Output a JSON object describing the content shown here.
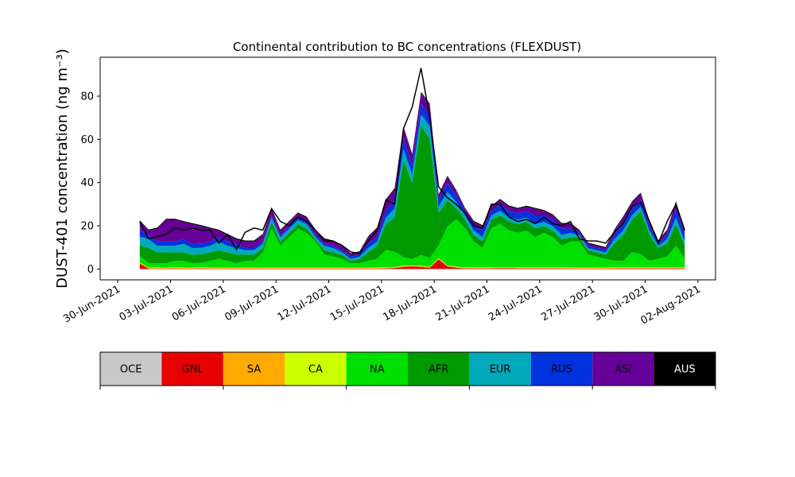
{
  "chart_data": {
    "type": "area",
    "title": "Continental contribution to BC concentrations (FLEXDUST)",
    "xlabel": "",
    "ylabel": "DUST-401 concentration (ng m⁻³)",
    "x_range": [
      "2021-06-29",
      "2021-08-03"
    ],
    "ylim": [
      -5,
      98
    ],
    "x_tick_labels": [
      "30-Jun-2021",
      "03-Jul-2021",
      "06-Jul-2021",
      "09-Jul-2021",
      "12-Jul-2021",
      "15-Jul-2021",
      "18-Jul-2021",
      "21-Jul-2021",
      "24-Jul-2021",
      "27-Jul-2021",
      "30-Jul-2021",
      "02-Aug-2021"
    ],
    "y_ticks": [
      0,
      20,
      40,
      60,
      80
    ],
    "x": [
      "2021-07-01",
      "2021-07-01",
      "2021-07-02",
      "2021-07-02",
      "2021-07-03",
      "2021-07-03",
      "2021-07-04",
      "2021-07-04",
      "2021-07-05",
      "2021-07-05",
      "2021-07-06",
      "2021-07-06",
      "2021-07-07",
      "2021-07-07",
      "2021-07-08",
      "2021-07-08",
      "2021-07-09",
      "2021-07-09",
      "2021-07-10",
      "2021-07-10",
      "2021-07-11",
      "2021-07-11",
      "2021-07-12",
      "2021-07-12",
      "2021-07-13",
      "2021-07-13",
      "2021-07-14",
      "2021-07-14",
      "2021-07-15",
      "2021-07-15",
      "2021-07-16",
      "2021-07-16",
      "2021-07-17",
      "2021-07-17",
      "2021-07-18",
      "2021-07-18",
      "2021-07-19",
      "2021-07-19",
      "2021-07-20",
      "2021-07-20",
      "2021-07-21",
      "2021-07-21",
      "2021-07-22",
      "2021-07-22",
      "2021-07-23",
      "2021-07-23",
      "2021-07-24",
      "2021-07-24",
      "2021-07-25",
      "2021-07-25",
      "2021-07-26",
      "2021-07-26",
      "2021-07-27",
      "2021-07-27",
      "2021-07-28",
      "2021-07-28",
      "2021-07-29",
      "2021-07-29",
      "2021-07-30",
      "2021-07-30",
      "2021-07-31",
      "2021-07-31",
      "2021-08-01"
    ],
    "legend": {
      "placement": "below",
      "entries": [
        "OCE",
        "GNL",
        "SA",
        "CA",
        "NA",
        "AFR",
        "EUR",
        "RUS",
        "ASI",
        "AUS"
      ]
    },
    "series": [
      {
        "name": "OCE",
        "color": "#c8c8c8",
        "values": [
          0,
          0,
          0,
          0,
          0,
          0,
          0,
          0,
          0,
          0,
          0,
          0,
          0,
          0,
          0,
          0,
          0,
          0,
          0,
          0,
          0,
          0,
          0,
          0,
          0,
          0,
          0,
          0,
          0,
          0,
          0,
          0,
          0,
          0,
          0,
          0,
          0,
          0,
          0,
          0,
          0,
          0,
          0,
          0,
          0,
          0,
          0,
          0,
          0,
          0,
          0,
          0,
          0,
          0,
          0,
          0,
          0,
          0,
          0,
          0,
          0,
          0,
          0
        ]
      },
      {
        "name": "GNL",
        "color": "#e60000",
        "values": [
          2.5,
          0.3,
          0.2,
          0.2,
          0.3,
          0.2,
          0.2,
          0.3,
          0.2,
          0.2,
          0.2,
          0.2,
          0.2,
          0.2,
          0.2,
          0.2,
          0.2,
          0.2,
          0.2,
          0.2,
          0.2,
          0.2,
          0.2,
          0.2,
          0.2,
          0.2,
          0.2,
          0.2,
          0.3,
          0.5,
          1.0,
          1.2,
          1.0,
          0.6,
          4.5,
          1.2,
          0.6,
          0.3,
          0.3,
          0.3,
          0.3,
          0.4,
          0.4,
          0.3,
          0.3,
          0.3,
          0.3,
          0.3,
          0.3,
          0.2,
          0.2,
          0.2,
          0.2,
          0.2,
          0.3,
          0.3,
          0.3,
          0.3,
          0.3,
          0.3,
          0.3,
          0.3,
          0.3
        ]
      },
      {
        "name": "SA",
        "color": "#ffaa00",
        "values": [
          0.3,
          0.3,
          0.3,
          0.3,
          0.3,
          0.3,
          0.3,
          0.3,
          0.3,
          0.3,
          0.3,
          0.3,
          0.3,
          0.3,
          0.3,
          0.3,
          0.3,
          0.3,
          0.3,
          0.3,
          0.3,
          0.3,
          0.3,
          0.3,
          0.3,
          0.3,
          0.3,
          0.3,
          0.3,
          0.3,
          0.3,
          0.3,
          0.3,
          0.3,
          0.3,
          0.3,
          0.3,
          0.3,
          0.3,
          0.3,
          0.3,
          0.3,
          0.3,
          0.3,
          0.3,
          0.3,
          0.3,
          0.3,
          0.3,
          0.3,
          0.3,
          0.3,
          0.3,
          0.3,
          0.3,
          0.3,
          0.3,
          0.3,
          0.3,
          0.3,
          0.3,
          0.3,
          0.3
        ]
      },
      {
        "name": "CA",
        "color": "#ccff00",
        "values": [
          0.2,
          0.2,
          0.2,
          0.2,
          0.2,
          0.2,
          0.2,
          0.2,
          0.2,
          0.2,
          0.2,
          0.2,
          0.2,
          0.2,
          0.2,
          0.2,
          0.2,
          0.2,
          0.2,
          0.2,
          0.2,
          0.2,
          0.2,
          0.2,
          0.2,
          0.2,
          0.2,
          0.2,
          0.2,
          0.2,
          0.2,
          0.2,
          0.2,
          0.2,
          0.2,
          0.2,
          0.2,
          0.2,
          0.2,
          0.2,
          0.2,
          0.2,
          0.2,
          0.2,
          0.2,
          0.2,
          0.2,
          0.2,
          0.2,
          0.2,
          0.2,
          0.2,
          0.2,
          0.2,
          0.2,
          0.2,
          0.2,
          0.2,
          0.2,
          0.2,
          0.2,
          0.2,
          0.2
        ]
      },
      {
        "name": "NA",
        "color": "#00e000",
        "values": [
          3,
          2,
          2,
          2,
          3,
          3,
          2,
          2,
          3,
          4,
          3,
          2,
          3,
          3,
          7,
          18,
          10,
          14,
          18,
          16,
          12,
          6,
          5,
          4,
          2,
          2,
          3,
          4,
          8,
          7,
          4,
          3,
          5,
          4,
          6,
          18,
          22,
          18,
          12,
          9,
          18,
          20,
          17,
          16,
          17,
          14,
          16,
          14,
          10,
          12,
          12,
          6,
          5,
          4,
          3,
          3,
          7,
          6,
          3,
          4,
          5,
          10,
          4
        ]
      },
      {
        "name": "AFR",
        "color": "#009900",
        "values": [
          5,
          7,
          5,
          5,
          4,
          4,
          4,
          4,
          4,
          4,
          4,
          4,
          3,
          3,
          2,
          3,
          2,
          2,
          2,
          2,
          1,
          2,
          2,
          2,
          1,
          2,
          4,
          6,
          12,
          16,
          45,
          35,
          60,
          55,
          15,
          12,
          5,
          4,
          3,
          3,
          4,
          4,
          4,
          4,
          4,
          4,
          3,
          3,
          3,
          2,
          2,
          2,
          2,
          2,
          8,
          12,
          15,
          20,
          12,
          5,
          6,
          10,
          6
        ]
      },
      {
        "name": "EUR",
        "color": "#00aabb",
        "values": [
          4,
          4,
          3,
          3,
          3,
          4,
          3,
          3,
          3,
          4,
          3,
          3,
          2,
          2,
          2,
          2,
          2,
          2,
          2,
          2,
          1,
          2,
          2,
          1,
          1,
          1,
          2,
          2,
          3,
          4,
          5,
          4,
          5,
          6,
          3,
          4,
          3,
          2,
          2,
          2,
          2,
          2,
          2,
          2,
          2,
          2,
          2,
          2,
          2,
          2,
          1,
          1,
          1,
          1,
          2,
          2,
          2,
          2,
          2,
          1,
          2,
          3,
          2
        ]
      },
      {
        "name": "RUS",
        "color": "#0033dd",
        "values": [
          3,
          2,
          2,
          2,
          2,
          2,
          2,
          2,
          2,
          2,
          2,
          2,
          1,
          1,
          1,
          1,
          1,
          1,
          1,
          1,
          1,
          1,
          1,
          1,
          1,
          1,
          2,
          2,
          3,
          4,
          5,
          4,
          5,
          5,
          3,
          4,
          3,
          2,
          2,
          3,
          2,
          3,
          3,
          3,
          3,
          4,
          3,
          3,
          3,
          2,
          1,
          1,
          1,
          1,
          2,
          3,
          3,
          3,
          2,
          1,
          2,
          4,
          3
        ]
      },
      {
        "name": "ASI",
        "color": "#660099",
        "values": [
          4,
          2,
          6,
          10,
          10,
          8,
          9,
          8,
          6,
          3,
          3,
          2,
          3,
          3,
          3,
          3,
          2,
          2,
          2,
          2,
          2,
          2,
          2,
          2,
          1,
          1,
          3,
          4,
          5,
          5,
          5,
          5,
          5,
          5,
          2,
          3,
          2,
          1,
          2,
          2,
          2,
          2,
          2,
          2,
          2,
          3,
          2,
          2,
          2,
          2,
          1,
          1,
          1,
          1,
          2,
          3,
          3,
          3,
          2,
          1,
          2,
          3,
          2
        ]
      },
      {
        "name": "AUS",
        "color": "#000000",
        "values": [
          0.5,
          0.5,
          0.5,
          0.5,
          0.5,
          0.5,
          0.5,
          0.5,
          0.5,
          0.5,
          0.5,
          0.5,
          0.5,
          0.5,
          0.5,
          0.5,
          0.5,
          0.5,
          0.5,
          0.5,
          0.5,
          0.5,
          0.5,
          0.5,
          0.5,
          0.5,
          0.5,
          0.5,
          0.5,
          0.5,
          0.5,
          0.5,
          0.5,
          0.5,
          0.5,
          0.5,
          0.5,
          0.5,
          0.5,
          0.5,
          0.5,
          0.5,
          0.5,
          0.5,
          0.5,
          0.5,
          0.5,
          0.5,
          0.5,
          0.5,
          0.5,
          0.5,
          0.5,
          0.5,
          0.5,
          0.5,
          0.5,
          0.5,
          0.5,
          0.5,
          0.5,
          0.5,
          0.5
        ]
      }
    ],
    "total": {
      "color": "#000000",
      "values": [
        22,
        14,
        15,
        16,
        19,
        18,
        19,
        18,
        18,
        12,
        16,
        9,
        17,
        19,
        18,
        28,
        22,
        20,
        24,
        22,
        18,
        13,
        13,
        11,
        8,
        7,
        13,
        18,
        32,
        30,
        65,
        75,
        93,
        70,
        38,
        33,
        30,
        26,
        20,
        19,
        30,
        30,
        24,
        22,
        23,
        21,
        24,
        21,
        20,
        22,
        14,
        13,
        13,
        12,
        17,
        21,
        29,
        31,
        22,
        12,
        22,
        30,
        18
      ]
    }
  }
}
